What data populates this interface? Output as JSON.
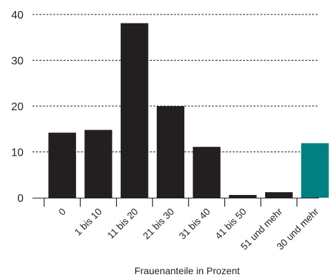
{
  "chart_data": {
    "type": "bar",
    "title": "",
    "ylabel": "",
    "xlabel": "Frauenanteile in Prozent",
    "categories": [
      "0",
      "1 bis 10",
      "11 bis 20",
      "21 bis 30",
      "31 bis 40",
      "41 bis 50",
      "51 und mehr",
      "30 und mehr"
    ],
    "values": [
      14.2,
      14.8,
      38.1,
      20.0,
      11.1,
      0.6,
      1.2,
      11.9
    ],
    "ylim": [
      0,
      40
    ],
    "yticks": [
      0,
      10,
      20,
      30,
      40
    ],
    "grid": "horizontal dashed",
    "colors": {
      "bar": "#231f20",
      "highlight": "#008080",
      "grid": "#231f20",
      "axis": "#231f20"
    },
    "highlight_category": "30 und mehr"
  }
}
